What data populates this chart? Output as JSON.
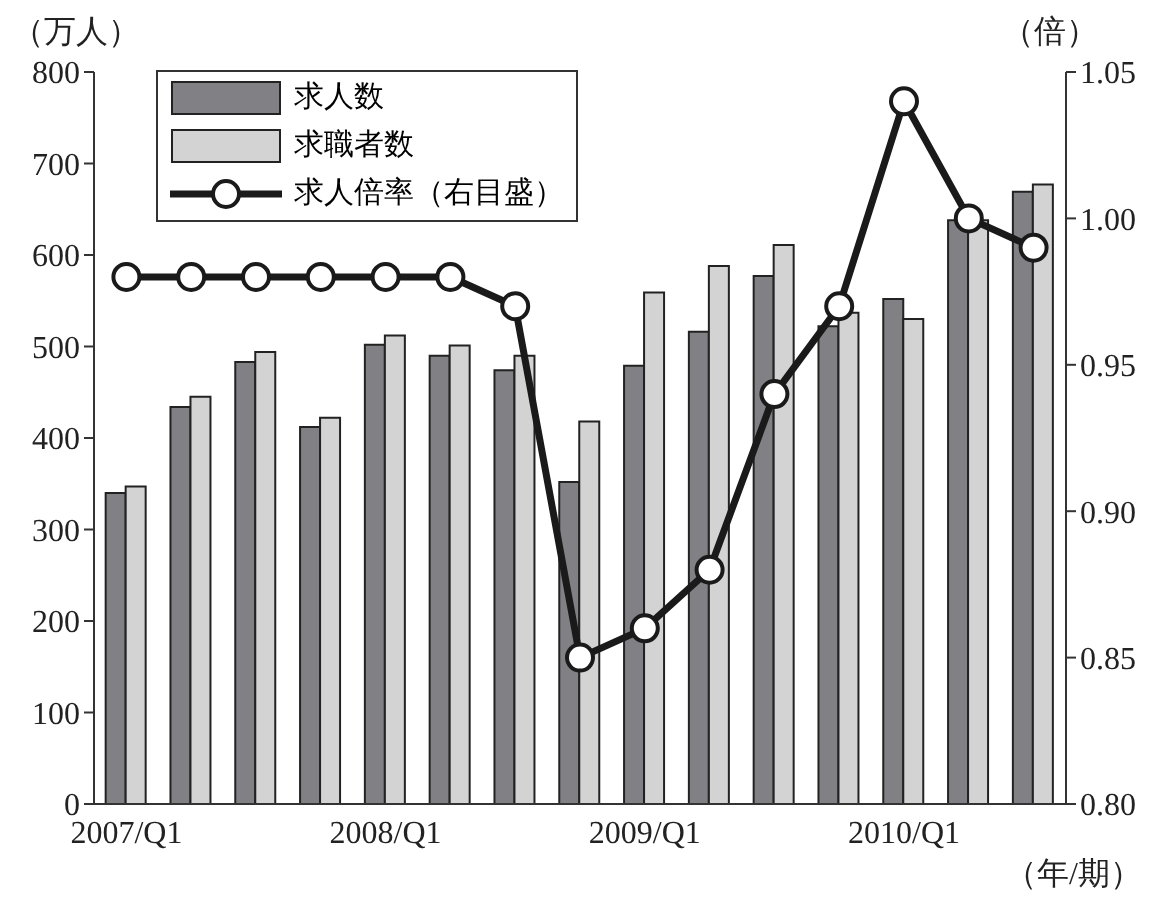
{
  "chart_data": {
    "type": "bar",
    "categories": [
      "2007/Q1",
      null,
      null,
      null,
      "2008/Q1",
      null,
      null,
      null,
      "2009/Q1",
      null,
      null,
      null,
      "2010/Q1",
      null,
      null
    ],
    "series": [
      {
        "name": "求人数",
        "color": "#808085",
        "values": [
          340,
          434,
          483,
          412,
          502,
          490,
          474,
          352,
          479,
          516,
          577,
          522,
          552,
          638,
          669
        ]
      },
      {
        "name": "求職者数",
        "color": "#d3d3d3",
        "values": [
          347,
          445,
          494,
          422,
          512,
          501,
          490,
          418,
          559,
          588,
          611,
          537,
          530,
          638,
          677
        ]
      },
      {
        "name": "求人倍率（右目盛）",
        "type": "line",
        "axis": "y2",
        "color": "#1a1a1a",
        "values": [
          0.98,
          0.98,
          0.98,
          0.98,
          0.98,
          0.98,
          0.97,
          0.85,
          0.86,
          0.88,
          0.94,
          0.97,
          1.04,
          1.0,
          0.99
        ]
      }
    ],
    "ylabel": "（万人）",
    "y2label": "（倍）",
    "xlabel": "（年/期）",
    "ylim": [
      0,
      800
    ],
    "yticks": [
      0,
      100,
      200,
      300,
      400,
      500,
      600,
      700,
      800
    ],
    "y2lim": [
      0.8,
      1.05
    ],
    "y2ticks": [
      {
        "value": 0.8,
        "label": "0.80"
      },
      {
        "value": 0.85,
        "label": "0.85"
      },
      {
        "value": 0.9,
        "label": "0.90"
      },
      {
        "value": 0.95,
        "label": "0.95"
      },
      {
        "value": 1.0,
        "label": "1.00"
      },
      {
        "value": 1.05,
        "label": "1.05"
      }
    ],
    "legend": "top left",
    "marker": "circle",
    "grid": false
  }
}
